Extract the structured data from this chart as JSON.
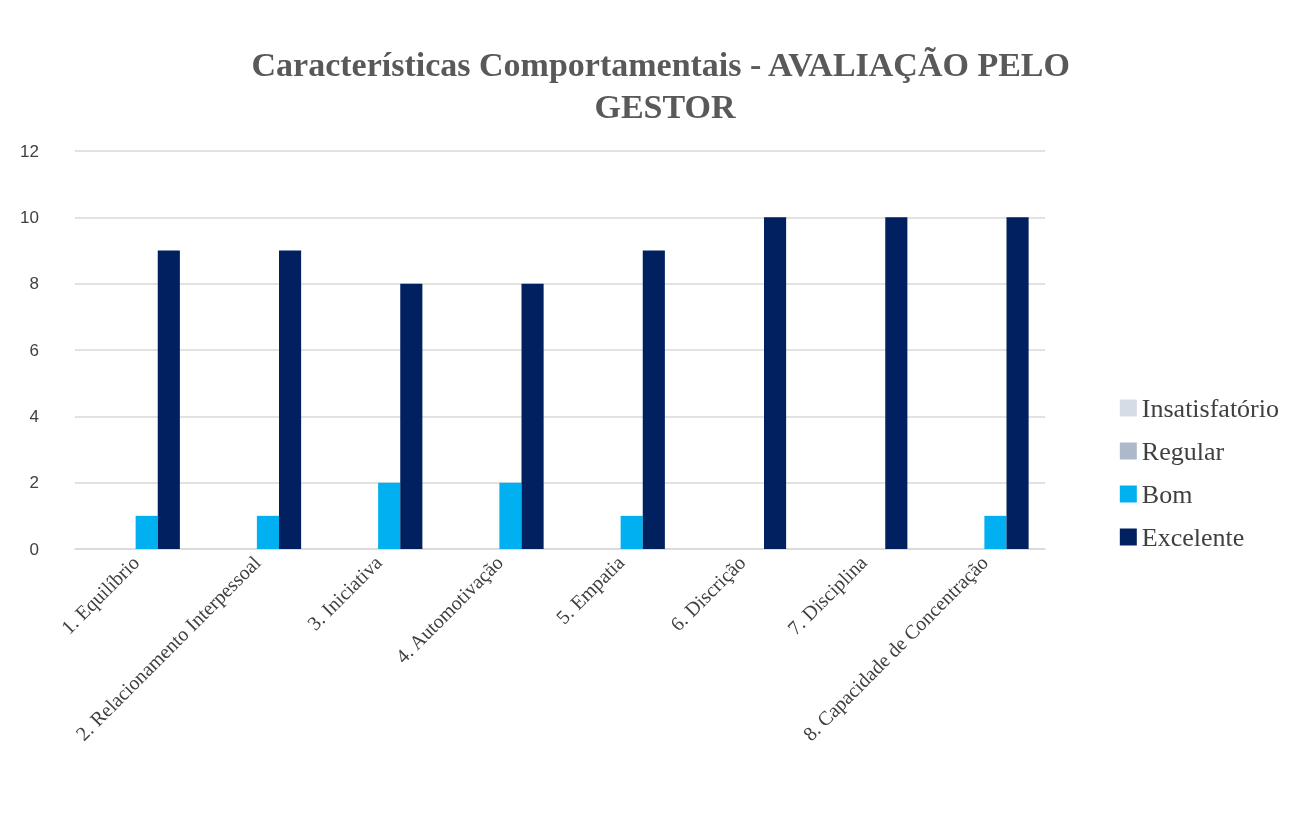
{
  "chart_data": {
    "type": "bar",
    "title": "Características Comportamentais - AVALIAÇÃO PELO GESTOR",
    "categories": [
      "1. Equilíbrio",
      "2. Relacionamento Interpessoal",
      "3. Iniciativa",
      "4. Automotivação",
      "5. Empatia",
      "6. Discrição",
      "7. Disciplina",
      "8. Capacidade de Concentração"
    ],
    "series": [
      {
        "name": "Insatisfatório",
        "color": "#d6dce5",
        "values": [
          0,
          0,
          0,
          0,
          0,
          0,
          0,
          0
        ]
      },
      {
        "name": "Regular",
        "color": "#adb9ca",
        "values": [
          0,
          0,
          0,
          0,
          0,
          0,
          0,
          0
        ]
      },
      {
        "name": "Bom",
        "color": "#00b0f0",
        "values": [
          1,
          1,
          2,
          2,
          1,
          0,
          0,
          1
        ]
      },
      {
        "name": "Excelente",
        "color": "#002060",
        "values": [
          9,
          9,
          8,
          8,
          9,
          10,
          10,
          10
        ]
      }
    ],
    "ylim": [
      0,
      12
    ],
    "yticks": [
      0,
      2,
      4,
      6,
      8,
      10,
      12
    ],
    "grid": "y",
    "legend": "right"
  }
}
